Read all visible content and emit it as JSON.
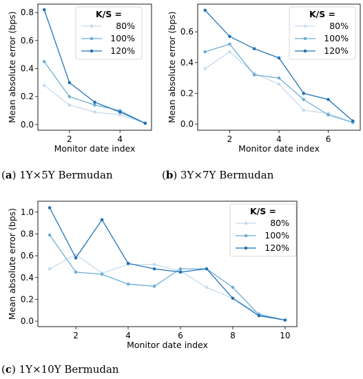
{
  "chart_data": [
    {
      "type": "line",
      "tag": "a",
      "caption": "1Y×5Y Bermudan",
      "xlabel": "Monitor date index",
      "ylabel": "Mean absolute error (bps)",
      "xlim": [
        0.75,
        5.25
      ],
      "ylim": [
        -0.04,
        0.86
      ],
      "xticks": [
        2,
        4
      ],
      "yticks": [
        0.0,
        0.2,
        0.4,
        0.6,
        0.8
      ],
      "ytick_labels": [
        "0.0",
        "0.2",
        "0.4",
        "0.6",
        "0.8"
      ],
      "legend_title": "K/S =",
      "legend_position": "top-right",
      "x": [
        1,
        2,
        3,
        4,
        5
      ],
      "series": [
        {
          "name": "80%",
          "color": "#c6dbef",
          "values": [
            0.28,
            0.14,
            0.09,
            0.07,
            0.01
          ]
        },
        {
          "name": "100%",
          "color": "#6baed6",
          "values": [
            0.45,
            0.2,
            0.14,
            0.1,
            0.01
          ]
        },
        {
          "name": "120%",
          "color": "#2171b5",
          "values": [
            0.82,
            0.3,
            0.16,
            0.09,
            0.01
          ]
        }
      ]
    },
    {
      "type": "line",
      "tag": "b",
      "caption": "3Y×7Y Bermudan",
      "xlabel": "Monitor date index",
      "ylabel": "Mean absolute error (bps)",
      "xlim": [
        0.7,
        7.3
      ],
      "ylim": [
        -0.04,
        0.78
      ],
      "xticks": [
        2,
        4,
        6
      ],
      "yticks": [
        0.0,
        0.2,
        0.4,
        0.6
      ],
      "ytick_labels": [
        "0.0",
        "0.2",
        "0.4",
        "0.6"
      ],
      "legend_title": "K/S =",
      "legend_position": "top-right",
      "x": [
        1,
        2,
        3,
        4,
        5,
        6,
        7
      ],
      "series": [
        {
          "name": "80%",
          "color": "#c6dbef",
          "values": [
            0.36,
            0.47,
            0.33,
            0.26,
            0.09,
            0.07,
            0.01
          ]
        },
        {
          "name": "100%",
          "color": "#6baed6",
          "values": [
            0.47,
            0.52,
            0.32,
            0.3,
            0.16,
            0.06,
            0.01
          ]
        },
        {
          "name": "120%",
          "color": "#2171b5",
          "values": [
            0.74,
            0.57,
            0.49,
            0.43,
            0.2,
            0.16,
            0.02
          ]
        }
      ]
    },
    {
      "type": "line",
      "tag": "c",
      "caption": "1Y×10Y Bermudan",
      "xlabel": "Monitor date index",
      "ylabel": "Mean absolute error (bps)",
      "xlim": [
        0.55,
        10.45
      ],
      "ylim": [
        -0.05,
        1.1
      ],
      "xticks": [
        2,
        4,
        6,
        8,
        10
      ],
      "yticks": [
        0.0,
        0.2,
        0.4,
        0.6,
        0.8,
        1.0
      ],
      "ytick_labels": [
        "0.0",
        "0.2",
        "0.4",
        "0.6",
        "0.8",
        "1.0"
      ],
      "legend_title": "K/S =",
      "legend_position": "top-right",
      "x": [
        1,
        2,
        3,
        4,
        5,
        6,
        7,
        8,
        9,
        10
      ],
      "series": [
        {
          "name": "80%",
          "color": "#c6dbef",
          "values": [
            0.48,
            0.61,
            0.44,
            0.52,
            0.52,
            0.46,
            0.31,
            0.21,
            0.07,
            0.01
          ]
        },
        {
          "name": "100%",
          "color": "#6baed6",
          "values": [
            0.79,
            0.45,
            0.43,
            0.34,
            0.32,
            0.48,
            0.48,
            0.31,
            0.06,
            0.01
          ]
        },
        {
          "name": "120%",
          "color": "#2171b5",
          "values": [
            1.04,
            0.58,
            0.93,
            0.53,
            0.48,
            0.45,
            0.48,
            0.21,
            0.05,
            0.01
          ]
        }
      ]
    }
  ]
}
